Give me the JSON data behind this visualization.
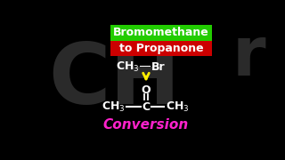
{
  "background_color": "#000000",
  "title_box1_text": "Bromomethane",
  "title_box1_bg": "#22cc00",
  "title_box1_color": "#ffffff",
  "title_box2_text": "to Propanone",
  "title_box2_bg": "#cc0000",
  "title_box2_color": "#ffffff",
  "watermark_left": "CH",
  "watermark_right": "r",
  "watermark_color": "#2a2a2a",
  "reactant_color": "#ffffff",
  "arrow_color": "#ffee00",
  "oxygen_color": "#ffffff",
  "product_color": "#ffffff",
  "double_bond_color": "#ffffff",
  "conversion_text": "Conversion",
  "conversion_color": "#ff22cc",
  "font_family": "DejaVu Sans"
}
